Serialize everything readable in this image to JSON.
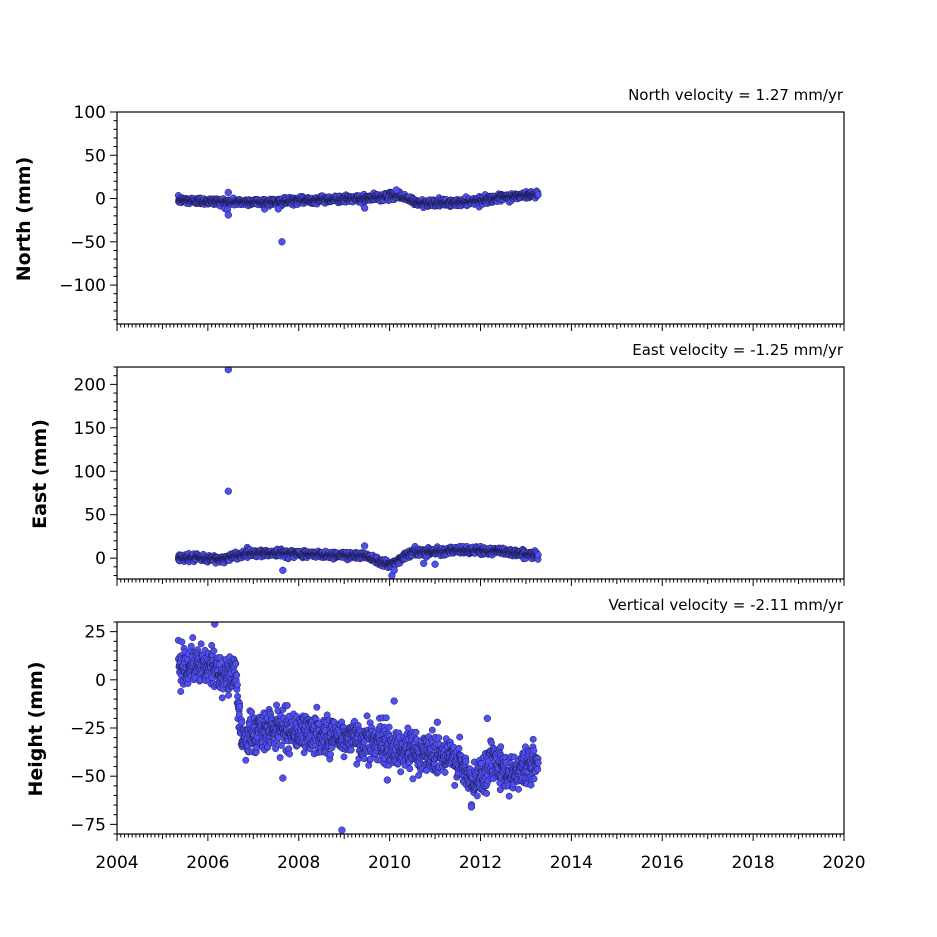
{
  "colors": {
    "marker_fill": "#4f4ff5",
    "marker_edge": "#1a1a4a",
    "axis": "#000000",
    "background": "#ffffff"
  },
  "chart_data": [
    {
      "type": "scatter",
      "title": "North velocity = 1.27 mm/yr",
      "ylabel": "North (mm)",
      "xlim": [
        2004,
        2020
      ],
      "ylim": [
        -145,
        100
      ],
      "yticks": [
        100,
        50,
        0,
        -50,
        -100
      ],
      "ytick_labels": [
        "100",
        "50",
        "0",
        "−50",
        "−100"
      ],
      "show_x_tick_labels": false,
      "grid": false,
      "outliers": [
        {
          "x": 2006.45,
          "y": 7
        },
        {
          "x": 2006.43,
          "y": -13
        },
        {
          "x": 2006.45,
          "y": -19
        },
        {
          "x": 2007.63,
          "y": -50
        },
        {
          "x": 2007.55,
          "y": -12
        },
        {
          "x": 2009.45,
          "y": -11
        },
        {
          "x": 2010.15,
          "y": 10
        }
      ],
      "trend_nodes": [
        {
          "x": 2005.4,
          "y": -2
        },
        {
          "x": 2006.5,
          "y": -4
        },
        {
          "x": 2007.5,
          "y": -4
        },
        {
          "x": 2008.5,
          "y": -1
        },
        {
          "x": 2009.5,
          "y": 0
        },
        {
          "x": 2010.2,
          "y": 4
        },
        {
          "x": 2010.6,
          "y": -5
        },
        {
          "x": 2011.5,
          "y": -5
        },
        {
          "x": 2012.3,
          "y": 0
        },
        {
          "x": 2013.25,
          "y": 5
        }
      ],
      "x_start": 2005.35,
      "x_end": 2013.27,
      "noise": 2.0
    },
    {
      "type": "scatter",
      "title": "East velocity = -1.25 mm/yr",
      "ylabel": "East (mm)",
      "xlim": [
        2004,
        2020
      ],
      "ylim": [
        -24,
        220
      ],
      "yticks": [
        200,
        150,
        100,
        50,
        0
      ],
      "ytick_labels": [
        "200",
        "150",
        "100",
        "50",
        "0"
      ],
      "show_x_tick_labels": false,
      "grid": false,
      "outliers": [
        {
          "x": 2006.45,
          "y": 217
        },
        {
          "x": 2006.45,
          "y": 77
        },
        {
          "x": 2007.65,
          "y": -14
        },
        {
          "x": 2009.45,
          "y": 14
        },
        {
          "x": 2010.05,
          "y": -20
        },
        {
          "x": 2010.1,
          "y": -14
        },
        {
          "x": 2010.75,
          "y": -6
        },
        {
          "x": 2011.0,
          "y": -7
        }
      ],
      "trend_nodes": [
        {
          "x": 2005.4,
          "y": 1
        },
        {
          "x": 2006.3,
          "y": -1
        },
        {
          "x": 2006.9,
          "y": 6
        },
        {
          "x": 2007.6,
          "y": 6
        },
        {
          "x": 2008.5,
          "y": 4
        },
        {
          "x": 2009.5,
          "y": 3
        },
        {
          "x": 2010.0,
          "y": -8
        },
        {
          "x": 2010.5,
          "y": 7
        },
        {
          "x": 2011.6,
          "y": 9
        },
        {
          "x": 2012.5,
          "y": 8
        },
        {
          "x": 2013.25,
          "y": 3
        }
      ],
      "x_start": 2005.35,
      "x_end": 2013.27,
      "noise": 2.0
    },
    {
      "type": "scatter",
      "title": "Vertical velocity = -2.11 mm/yr",
      "ylabel": "Height (mm)",
      "xlim": [
        2004,
        2020
      ],
      "xticks": [
        2004,
        2006,
        2008,
        2010,
        2012,
        2014,
        2016,
        2018,
        2020
      ],
      "xtick_labels": [
        "2004",
        "2006",
        "2008",
        "2010",
        "2012",
        "2014",
        "2016",
        "2018",
        "2020"
      ],
      "ylim": [
        -80,
        30
      ],
      "yticks": [
        25,
        0,
        -25,
        -50,
        -75
      ],
      "ytick_labels": [
        "25",
        "0",
        "−25",
        "−50",
        "−75"
      ],
      "show_x_tick_labels": true,
      "grid": false,
      "outliers": [
        {
          "x": 2006.15,
          "y": 29
        },
        {
          "x": 2008.95,
          "y": -78
        },
        {
          "x": 2007.65,
          "y": -51
        },
        {
          "x": 2009.95,
          "y": -52
        },
        {
          "x": 2011.8,
          "y": -66
        },
        {
          "x": 2012.15,
          "y": -20
        },
        {
          "x": 2011.05,
          "y": -22
        },
        {
          "x": 2010.1,
          "y": -11
        }
      ],
      "trend_nodes": [
        {
          "x": 2005.35,
          "y": 9
        },
        {
          "x": 2006.0,
          "y": 6
        },
        {
          "x": 2006.6,
          "y": 2
        },
        {
          "x": 2006.75,
          "y": -30
        },
        {
          "x": 2007.5,
          "y": -25
        },
        {
          "x": 2008.5,
          "y": -29
        },
        {
          "x": 2009.5,
          "y": -31
        },
        {
          "x": 2010.2,
          "y": -36
        },
        {
          "x": 2010.9,
          "y": -38
        },
        {
          "x": 2011.5,
          "y": -42
        },
        {
          "x": 2011.85,
          "y": -55
        },
        {
          "x": 2012.3,
          "y": -40
        },
        {
          "x": 2012.6,
          "y": -49
        },
        {
          "x": 2013.25,
          "y": -43
        }
      ],
      "x_start": 2005.35,
      "x_end": 2013.27,
      "noise": 5.0
    }
  ]
}
